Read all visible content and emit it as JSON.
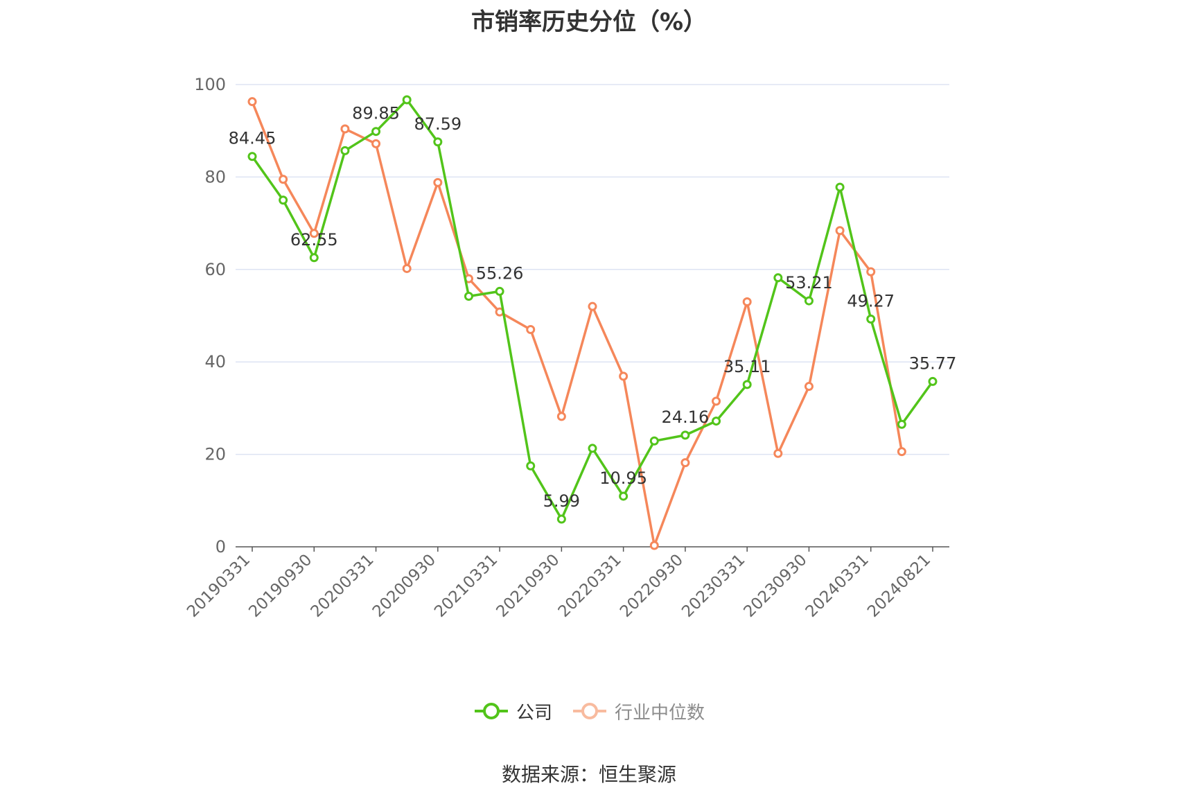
{
  "title": "市销率历史分位（%）",
  "source_text": "数据来源：恒生聚源",
  "colors": {
    "company": "#52c41a",
    "industry": "#f5875a",
    "industry_legend_faded": "#f8bb9f",
    "grid": "#dde3f3",
    "axis": "#555555",
    "tick_text": "#666666",
    "label_text": "#333333"
  },
  "legend": [
    {
      "label": "公司",
      "series_index": 0,
      "icon": "circle-line-icon"
    },
    {
      "label": "行业中位数",
      "series_index": 1,
      "icon": "circle-line-icon"
    }
  ],
  "chart_data": {
    "type": "line",
    "title": "市销率历史分位（%）",
    "ylim": [
      0,
      100
    ],
    "yticks": [
      0,
      20,
      40,
      60,
      80,
      100
    ],
    "grid": true,
    "legend_position": "bottom-center",
    "x": [
      "20190331",
      "20190630",
      "20190930",
      "20191231",
      "20200331",
      "20200630",
      "20200930",
      "20201231",
      "20210331",
      "20210630",
      "20210930",
      "20211231",
      "20220331",
      "20220630",
      "20220930",
      "20221231",
      "20230331",
      "20230630",
      "20230930",
      "20231231",
      "20240331",
      "20240630",
      "20240821"
    ],
    "xtick_labels": [
      "20190331",
      "20190930",
      "20200331",
      "20200930",
      "20210331",
      "20210930",
      "20220331",
      "20220930",
      "20230331",
      "20230930",
      "20240331",
      "20240821"
    ],
    "series": [
      {
        "name": "公司",
        "values": [
          84.45,
          75.0,
          62.55,
          85.7,
          89.85,
          96.7,
          87.59,
          54.2,
          55.26,
          17.5,
          5.99,
          21.3,
          10.95,
          22.9,
          24.16,
          27.2,
          35.11,
          58.2,
          53.21,
          77.8,
          49.27,
          26.5,
          35.77
        ],
        "labels": [
          "84.45",
          null,
          "62.55",
          null,
          "89.85",
          null,
          "87.59",
          null,
          "55.26",
          null,
          "5.99",
          null,
          "10.95",
          null,
          "24.16",
          null,
          "35.11",
          null,
          "53.21",
          null,
          "49.27",
          null,
          "35.77"
        ]
      },
      {
        "name": "行业中位数",
        "values": [
          96.3,
          79.5,
          67.8,
          90.4,
          87.2,
          60.2,
          78.8,
          58.0,
          50.8,
          47.0,
          28.2,
          52.0,
          36.9,
          0.3,
          18.2,
          31.5,
          53.0,
          20.2,
          34.7,
          68.4,
          59.5,
          20.6,
          null
        ]
      }
    ]
  }
}
